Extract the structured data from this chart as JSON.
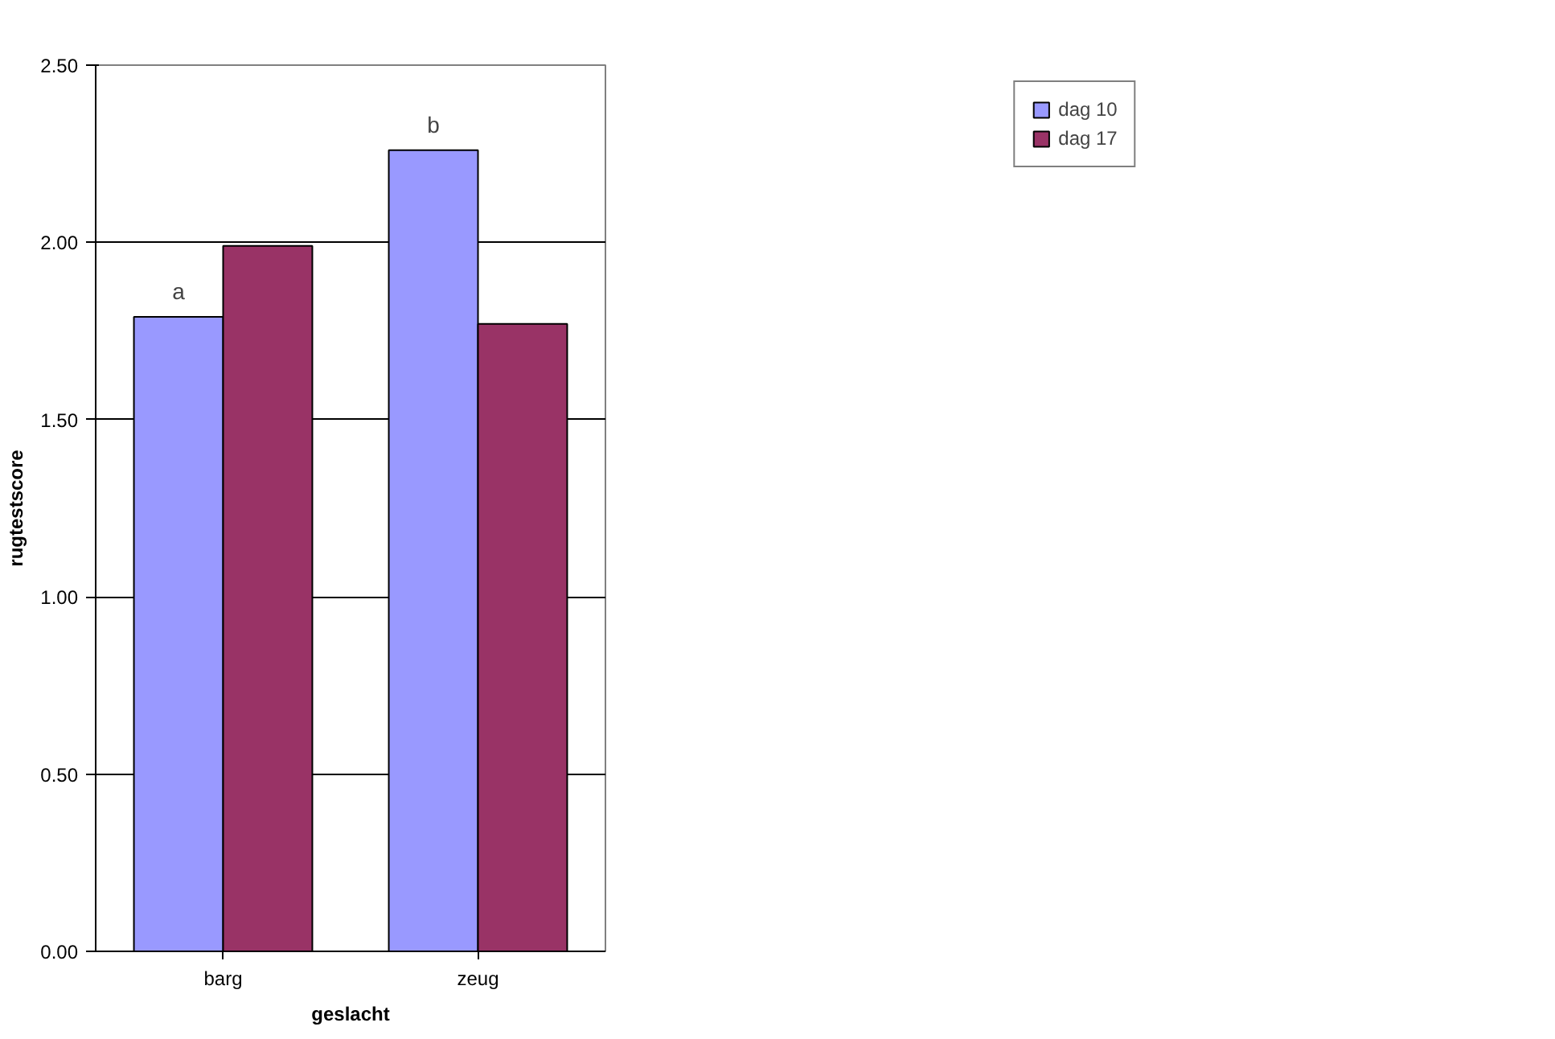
{
  "chart_data": {
    "type": "bar",
    "xlabel": "geslacht",
    "ylabel": "rugtestscore",
    "categories": [
      "barg",
      "zeug"
    ],
    "series": [
      {
        "name": "dag 10",
        "color": "#9999ff",
        "values": [
          1.79,
          2.26
        ]
      },
      {
        "name": "dag 17",
        "color": "#993366",
        "values": [
          1.99,
          1.77
        ]
      }
    ],
    "ylim": [
      0,
      2.5
    ],
    "yticks": [
      {
        "value": 0,
        "label": "0.00"
      },
      {
        "value": 0.5,
        "label": "0.50"
      },
      {
        "value": 1,
        "label": "1.00"
      },
      {
        "value": 1.5,
        "label": "1.50"
      },
      {
        "value": 2,
        "label": "2.00"
      },
      {
        "value": 2.5,
        "label": "2.50"
      }
    ],
    "grid": "y",
    "legend": "top right",
    "annotations": [
      {
        "text": "a",
        "x": "barg",
        "y": 1.79
      },
      {
        "text": "b",
        "x": "zeug",
        "y": 2.26
      }
    ]
  }
}
